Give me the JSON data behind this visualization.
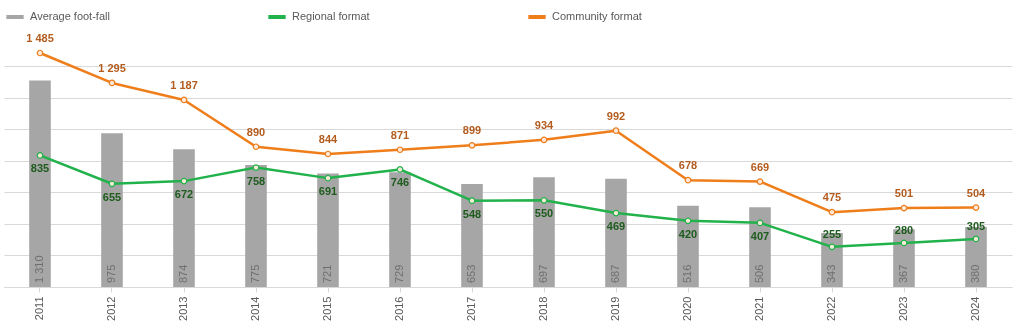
{
  "chart_data": {
    "type": "bar",
    "categories": [
      "2011",
      "2012",
      "2013",
      "2014",
      "2015",
      "2016",
      "2017",
      "2018",
      "2019",
      "2020",
      "2021",
      "2022",
      "2023",
      "2024"
    ],
    "series": [
      {
        "name": "Average foot-fall",
        "color": "#a6a6a6",
        "values": [
          1310,
          975,
          874,
          775,
          721,
          729,
          653,
          697,
          687,
          516,
          506,
          343,
          367,
          380
        ],
        "value_labels": [
          "1 310",
          "975",
          "874",
          "775",
          "721",
          "729",
          "653",
          "697",
          "687",
          "516",
          "506",
          "343",
          "367",
          "380"
        ]
      },
      {
        "name": "Regional format",
        "type": "line",
        "color": "#22b24c",
        "values": [
          835,
          655,
          672,
          758,
          691,
          746,
          548,
          550,
          469,
          420,
          407,
          255,
          280,
          305
        ],
        "value_labels": [
          "835",
          "655",
          "672",
          "758",
          "691",
          "746",
          "548",
          "550",
          "469",
          "420",
          "407",
          "255",
          "280",
          "305"
        ]
      },
      {
        "name": "Community format",
        "type": "line",
        "color": "#ee7d1a",
        "values": [
          1485,
          1295,
          1187,
          890,
          844,
          871,
          899,
          934,
          992,
          678,
          669,
          475,
          501,
          504
        ],
        "value_labels": [
          "1 485",
          "1 295",
          "1 187",
          "890",
          "844",
          "871",
          "899",
          "934",
          "992",
          "678",
          "669",
          "475",
          "501",
          "504"
        ]
      }
    ],
    "yticks": [
      {
        "value": 0,
        "label": null
      },
      {
        "value": 200,
        "label": null
      },
      {
        "value": 400,
        "label": null
      },
      {
        "value": 600,
        "label": null
      },
      {
        "value": 800,
        "label": null
      },
      {
        "value": 1000,
        "label": null
      },
      {
        "value": 1200,
        "label": null
      },
      {
        "value": 1400,
        "label": null
      }
    ],
    "grid": "y",
    "legend": "top",
    "marker": "circle",
    "tick_labels": "x"
  }
}
